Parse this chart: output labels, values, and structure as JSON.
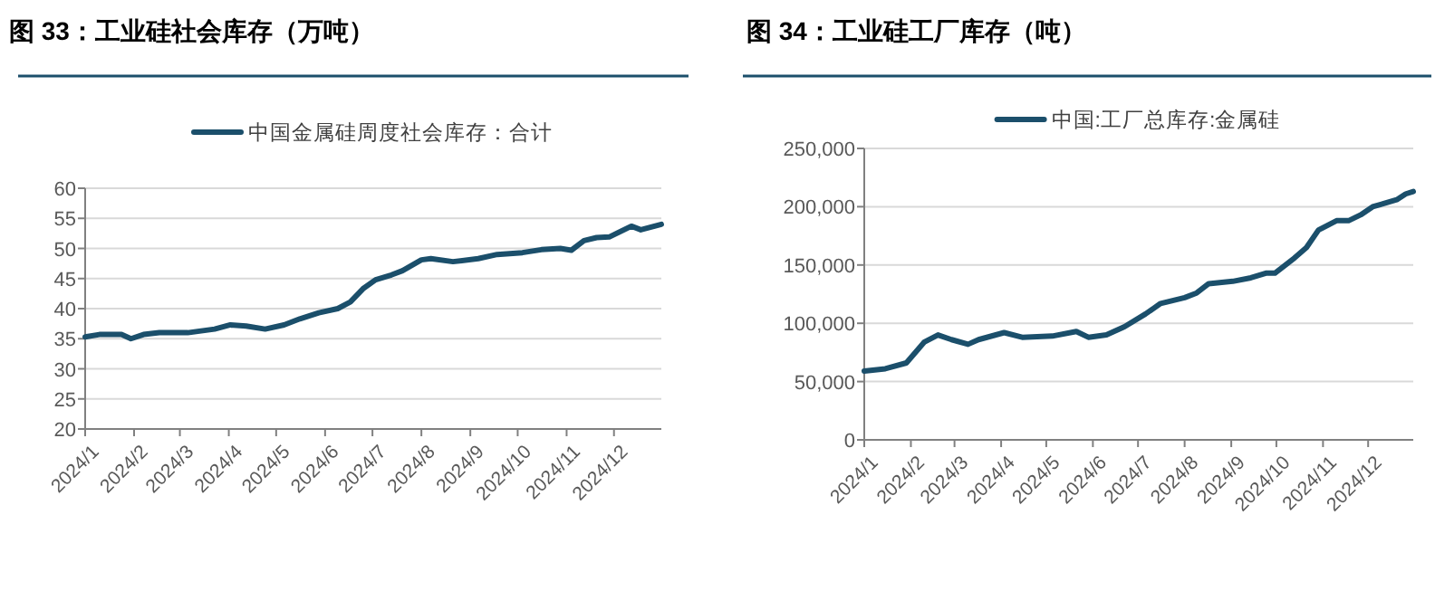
{
  "chart_data": [
    {
      "type": "line",
      "title": "图 33：工业硅社会库存（万吨）",
      "legend": "top",
      "grid": "y",
      "marker": "none",
      "line_style": "solid",
      "xlim": [
        "2024-01-01",
        "2024-12-31"
      ],
      "xticks": [
        {
          "value": "2024-01-01",
          "label": "2024/1"
        },
        {
          "value": "2024-02-01",
          "label": "2024/2"
        },
        {
          "value": "2024-03-01",
          "label": "2024/3"
        },
        {
          "value": "2024-04-01",
          "label": "2024/4"
        },
        {
          "value": "2024-05-01",
          "label": "2024/5"
        },
        {
          "value": "2024-06-01",
          "label": "2024/6"
        },
        {
          "value": "2024-07-01",
          "label": "2024/7"
        },
        {
          "value": "2024-08-01",
          "label": "2024/8"
        },
        {
          "value": "2024-09-01",
          "label": "2024/9"
        },
        {
          "value": "2024-10-01",
          "label": "2024/10"
        },
        {
          "value": "2024-11-01",
          "label": "2024/11"
        },
        {
          "value": "2024-12-01",
          "label": "2024/12"
        }
      ],
      "ylim": [
        20,
        60
      ],
      "yticks": [
        20,
        25,
        30,
        35,
        40,
        45,
        50,
        55,
        60
      ],
      "series": [
        {
          "name": "中国金属硅周度社会库存：合计",
          "color": "#1b4f6b",
          "x": [
            "2024-01-01",
            "2024-01-10",
            "2024-01-24",
            "2024-01-30",
            "2024-02-07",
            "2024-02-17",
            "2024-03-06",
            "2024-03-23",
            "2024-04-02",
            "2024-04-12",
            "2024-04-24",
            "2024-05-06",
            "2024-05-16",
            "2024-05-28",
            "2024-06-09",
            "2024-06-17",
            "2024-06-25",
            "2024-07-03",
            "2024-07-13",
            "2024-07-20",
            "2024-08-01",
            "2024-08-07",
            "2024-08-21",
            "2024-09-06",
            "2024-09-18",
            "2024-10-04",
            "2024-10-16",
            "2024-10-28",
            "2024-11-04",
            "2024-11-12",
            "2024-11-20",
            "2024-11-28",
            "2024-12-12",
            "2024-12-18",
            "2024-12-31"
          ],
          "values": [
            35.3,
            35.7,
            35.7,
            35.0,
            35.7,
            36.0,
            36.0,
            36.6,
            37.3,
            37.1,
            36.6,
            37.3,
            38.3,
            39.3,
            40.0,
            41.1,
            43.3,
            44.8,
            45.6,
            46.3,
            48.1,
            48.3,
            47.8,
            48.3,
            49.0,
            49.3,
            49.8,
            50.0,
            49.7,
            51.3,
            51.8,
            51.9,
            53.7,
            53.1,
            54.0
          ]
        }
      ]
    },
    {
      "type": "line",
      "title": "图 34：工业硅工厂库存（吨）",
      "legend": "top",
      "grid": "y",
      "marker": "none",
      "line_style": "solid",
      "xlim": [
        "2024-01-01",
        "2024-12-31"
      ],
      "xticks": [
        {
          "value": "2024-01-01",
          "label": "2024/1"
        },
        {
          "value": "2024-02-01",
          "label": "2024/2"
        },
        {
          "value": "2024-03-01",
          "label": "2024/3"
        },
        {
          "value": "2024-04-01",
          "label": "2024/4"
        },
        {
          "value": "2024-05-01",
          "label": "2024/5"
        },
        {
          "value": "2024-06-01",
          "label": "2024/6"
        },
        {
          "value": "2024-07-01",
          "label": "2024/7"
        },
        {
          "value": "2024-08-01",
          "label": "2024/8"
        },
        {
          "value": "2024-09-01",
          "label": "2024/9"
        },
        {
          "value": "2024-10-01",
          "label": "2024/10"
        },
        {
          "value": "2024-11-01",
          "label": "2024/11"
        },
        {
          "value": "2024-12-01",
          "label": "2024/12"
        }
      ],
      "ylim": [
        0,
        250000
      ],
      "yticks": [
        0,
        {
          "value": 50000,
          "label": "50,000"
        },
        {
          "value": 100000,
          "label": "100,000"
        },
        {
          "value": 150000,
          "label": "150,000"
        },
        {
          "value": 200000,
          "label": "200,000"
        },
        {
          "value": 250000,
          "label": "250,000"
        }
      ],
      "series": [
        {
          "name": "中国:工厂总库存:金属硅",
          "color": "#1b4f6b",
          "x": [
            "2024-01-01",
            "2024-01-15",
            "2024-01-29",
            "2024-02-10",
            "2024-02-19",
            "2024-02-28",
            "2024-03-10",
            "2024-03-17",
            "2024-04-03",
            "2024-04-15",
            "2024-05-05",
            "2024-05-21",
            "2024-05-29",
            "2024-06-10",
            "2024-06-22",
            "2024-07-06",
            "2024-07-16",
            "2024-08-01",
            "2024-08-09",
            "2024-08-17",
            "2024-09-02",
            "2024-09-14",
            "2024-09-24",
            "2024-09-30",
            "2024-10-13",
            "2024-10-21",
            "2024-10-29",
            "2024-11-10",
            "2024-11-18",
            "2024-11-26",
            "2024-12-04",
            "2024-12-20",
            "2024-12-26",
            "2024-12-31"
          ],
          "values": [
            59000,
            61000,
            66000,
            84000,
            90000,
            86000,
            82000,
            86000,
            92000,
            88000,
            89000,
            93000,
            88000,
            90000,
            97000,
            108000,
            117000,
            122000,
            126000,
            134000,
            136000,
            139000,
            143000,
            143000,
            156000,
            165000,
            180000,
            188000,
            188000,
            193000,
            200000,
            206000,
            211000,
            213000
          ]
        }
      ]
    }
  ]
}
